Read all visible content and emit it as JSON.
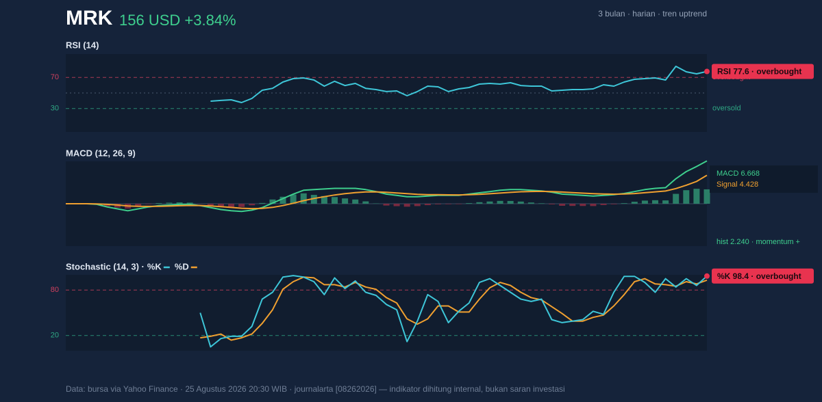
{
  "header": {
    "ticker": "MRK",
    "price": "156 USD +3.84%",
    "meta": "3 bulan · harian · tren uptrend"
  },
  "chart_data": [
    {
      "type": "line",
      "title": "RSI (14)",
      "series": [
        {
          "color": "#3ec6d8",
          "values": [
            null,
            null,
            null,
            null,
            null,
            null,
            null,
            null,
            null,
            null,
            null,
            null,
            null,
            null,
            39.5,
            40.4,
            41.2,
            37.7,
            43,
            53.5,
            56,
            64,
            68.4,
            69.3,
            66.7,
            58.8,
            65,
            59.6,
            62.3,
            56,
            54.4,
            51.8,
            52.6,
            46.5,
            51.8,
            58.8,
            57.9,
            51.8,
            55.3,
            57,
            61.4,
            62.3,
            61.4,
            63.2,
            59.6,
            58.8,
            58.8,
            52.6,
            53.5,
            54.4,
            54.4,
            55.3,
            60.5,
            58.8,
            64,
            67.5,
            68.4,
            69.3,
            66.7,
            84.2,
            77.2,
            74.6,
            77.6
          ]
        }
      ],
      "ylim": [
        0,
        100
      ],
      "yticks": [
        30,
        70
      ],
      "midline": 50,
      "level_colors": [
        "#2fa884",
        "#d0405f"
      ],
      "level_labels": [
        "oversold",
        "overbought"
      ],
      "badge": "RSI 77.6 · overbought",
      "badge_color": "#e8334f"
    },
    {
      "type": "macd",
      "title": "MACD (12, 26, 9)",
      "series": [
        {
          "name": "MACD",
          "color": "#3ecf8e",
          "values": [
            0,
            0,
            0,
            -0.1,
            -0.5,
            -0.8,
            -1.1,
            -0.8,
            -0.5,
            -0.3,
            -0.2,
            -0.1,
            -0.1,
            -0.3,
            -0.6,
            -0.9,
            -1.1,
            -1.2,
            -1.0,
            -0.6,
            0.1,
            0.8,
            1.5,
            2.1,
            2.2,
            2.3,
            2.4,
            2.4,
            2.4,
            2.2,
            1.9,
            1.5,
            1.3,
            1.1,
            1.1,
            1.2,
            1.3,
            1.3,
            1.3,
            1.5,
            1.7,
            1.9,
            2.1,
            2.2,
            2.2,
            2.1,
            2.0,
            1.8,
            1.5,
            1.4,
            1.3,
            1.2,
            1.3,
            1.4,
            1.6,
            1.9,
            2.2,
            2.4,
            2.5,
            3.9,
            5.0,
            5.8,
            6.668
          ]
        },
        {
          "name": "Signal",
          "color": "#f0a030",
          "values": [
            0,
            0,
            0,
            -0.02,
            -0.1,
            -0.2,
            -0.35,
            -0.4,
            -0.42,
            -0.4,
            -0.36,
            -0.31,
            -0.27,
            -0.28,
            -0.34,
            -0.45,
            -0.58,
            -0.7,
            -0.76,
            -0.72,
            -0.56,
            -0.29,
            0.07,
            0.48,
            0.82,
            1.1,
            1.36,
            1.57,
            1.74,
            1.83,
            1.85,
            1.78,
            1.68,
            1.56,
            1.47,
            1.42,
            1.4,
            1.38,
            1.37,
            1.4,
            1.46,
            1.55,
            1.66,
            1.77,
            1.86,
            1.91,
            1.93,
            1.9,
            1.82,
            1.74,
            1.65,
            1.56,
            1.51,
            1.49,
            1.51,
            1.59,
            1.71,
            1.85,
            1.98,
            2.36,
            2.89,
            3.47,
            4.428
          ]
        },
        {
          "name": "hist",
          "type": "bar",
          "colors": [
            "#2b7f68",
            "#7a2a40"
          ],
          "values": [
            0,
            0,
            0,
            -0.08,
            -0.4,
            -0.6,
            -0.75,
            -0.4,
            -0.08,
            0.1,
            0.16,
            0.21,
            0.17,
            -0.02,
            -0.26,
            -0.45,
            -0.52,
            -0.5,
            -0.24,
            0.12,
            0.66,
            1.09,
            1.43,
            1.62,
            1.38,
            1.2,
            1.04,
            0.83,
            0.66,
            0.37,
            0.05,
            -0.28,
            -0.38,
            -0.46,
            -0.37,
            -0.22,
            -0.1,
            -0.08,
            -0.07,
            0.1,
            0.24,
            0.35,
            0.44,
            0.43,
            0.34,
            0.19,
            0.07,
            -0.1,
            -0.32,
            -0.34,
            -0.35,
            -0.36,
            -0.21,
            -0.09,
            0.09,
            0.31,
            0.49,
            0.55,
            0.52,
            1.54,
            2.11,
            2.33,
            2.24
          ]
        }
      ],
      "ylim": [
        -6.6,
        6.6
      ],
      "annotations": [
        "MACD 6.668",
        "Signal 4.428",
        "hist 2.240 · momentum +"
      ]
    },
    {
      "type": "line",
      "title": "Stochastic (14, 3) ·",
      "series": [
        {
          "name": "%K",
          "color": "#3ec6d8",
          "values": [
            null,
            null,
            null,
            null,
            null,
            null,
            null,
            null,
            null,
            null,
            null,
            null,
            null,
            50,
            5,
            16,
            19,
            19,
            32,
            68,
            77,
            97,
            99,
            97,
            91,
            74,
            96,
            82,
            92,
            77,
            73,
            61,
            54,
            12,
            39,
            74,
            65,
            37,
            52,
            63,
            90,
            95,
            86,
            77,
            68,
            65,
            68,
            41,
            37,
            39,
            41,
            52,
            48,
            77,
            98,
            98,
            90,
            77,
            95,
            84,
            95,
            86,
            98.4
          ]
        },
        {
          "name": "%D",
          "color": "#f0a030",
          "values": [
            null,
            null,
            null,
            null,
            null,
            null,
            null,
            null,
            null,
            null,
            null,
            null,
            null,
            17,
            19,
            22,
            14,
            17,
            22,
            36,
            54,
            81,
            91,
            97,
            96,
            87,
            87,
            84,
            90,
            84,
            81,
            70,
            63,
            42,
            35,
            42,
            59,
            59,
            51,
            51,
            68,
            83,
            90,
            86,
            77,
            70,
            67,
            58,
            49,
            39,
            39,
            44,
            47,
            59,
            74,
            91,
            95,
            88,
            87,
            85,
            91,
            88,
            93
          ]
        }
      ],
      "ylim": [
        0,
        100
      ],
      "yticks": [
        20,
        80
      ],
      "level_colors": [
        "#2fa884",
        "#d0405f"
      ],
      "badge": "%K 98.4 · overbought",
      "badge_color": "#e8334f"
    }
  ],
  "footer": "Data: bursa via Yahoo Finance · 25 Agustus 2026 20:30 WIB · journalarta [08262026] — indikator dihitung internal, bukan saran investasi"
}
